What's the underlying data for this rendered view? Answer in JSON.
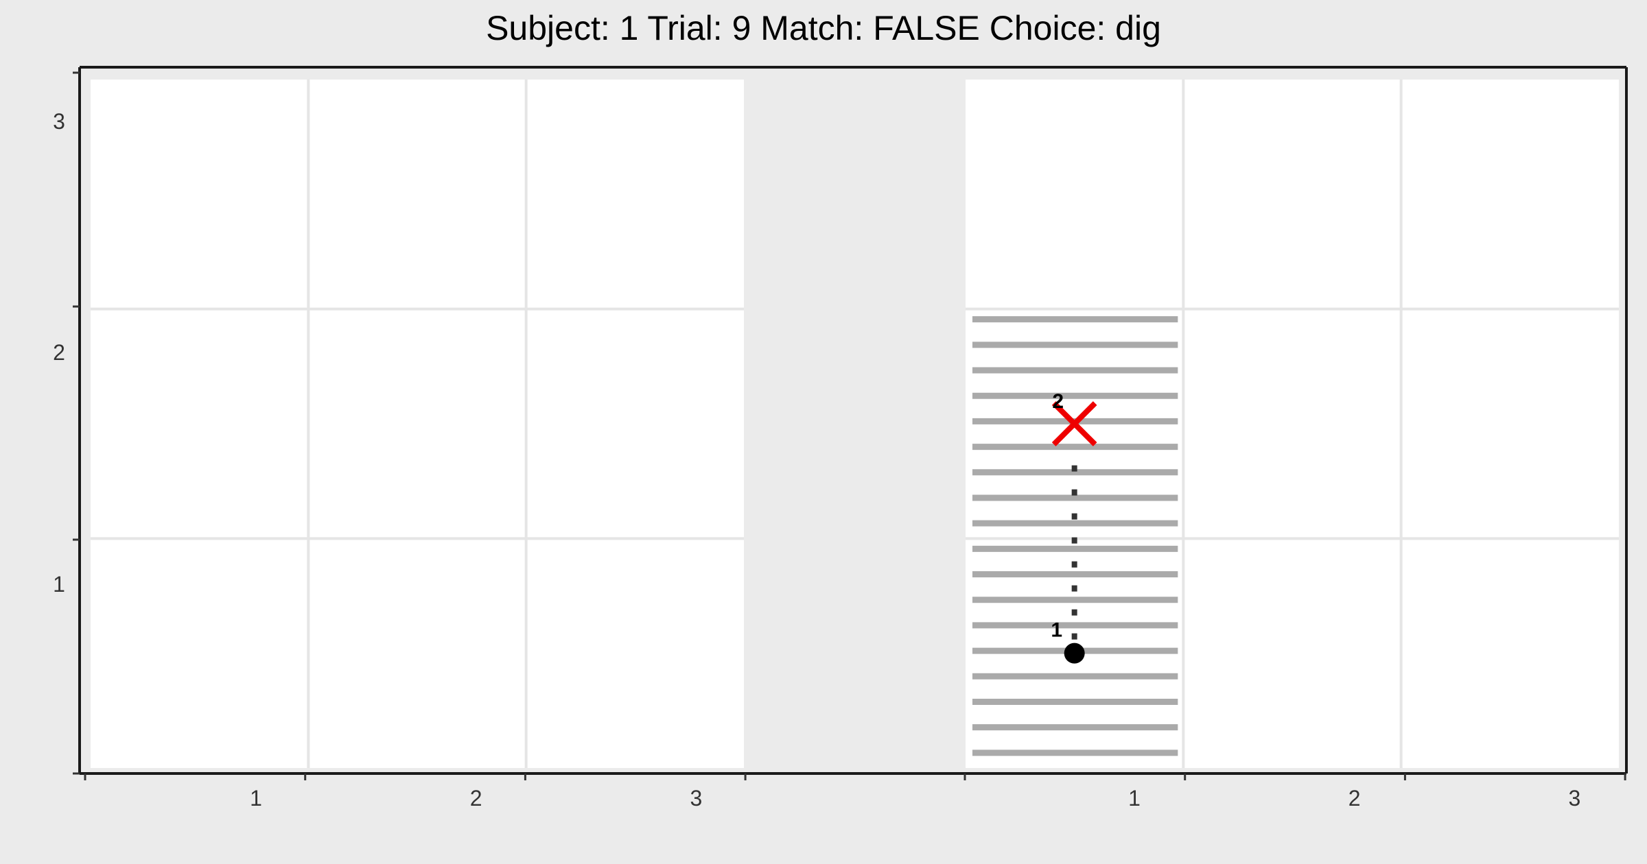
{
  "chart_data": {
    "type": "scatter",
    "title": "Subject:  1  Trial:  9  Match: FALSE  Choice: dig",
    "xlabel": "",
    "ylabel": "",
    "ylim": [
      0,
      3
    ],
    "grid": true,
    "y_ticks": [
      "1",
      "2",
      "3"
    ],
    "panels": [
      {
        "name": "left",
        "x_ticks": [
          "1",
          "2",
          "3"
        ],
        "shaded_cell": null,
        "points": [],
        "path": []
      },
      {
        "name": "right",
        "x_ticks": [
          "1",
          "2",
          "3"
        ],
        "shaded_cell": {
          "col": 1,
          "row_from": 0,
          "row_to": 2
        },
        "start_point": {
          "x": 0.5,
          "y": 0.5,
          "label": "1"
        },
        "end_point": {
          "x": 0.5,
          "y": 1.5,
          "label": "2"
        },
        "end_marker": "X",
        "path_style": "dotted"
      }
    ],
    "colors": {
      "panel_bg": "#EBEBEB",
      "cell_bg": "#FFFFFF",
      "hatch": "#AAAAAA",
      "end_marker": "#EE0000",
      "start_marker": "#000000"
    }
  }
}
